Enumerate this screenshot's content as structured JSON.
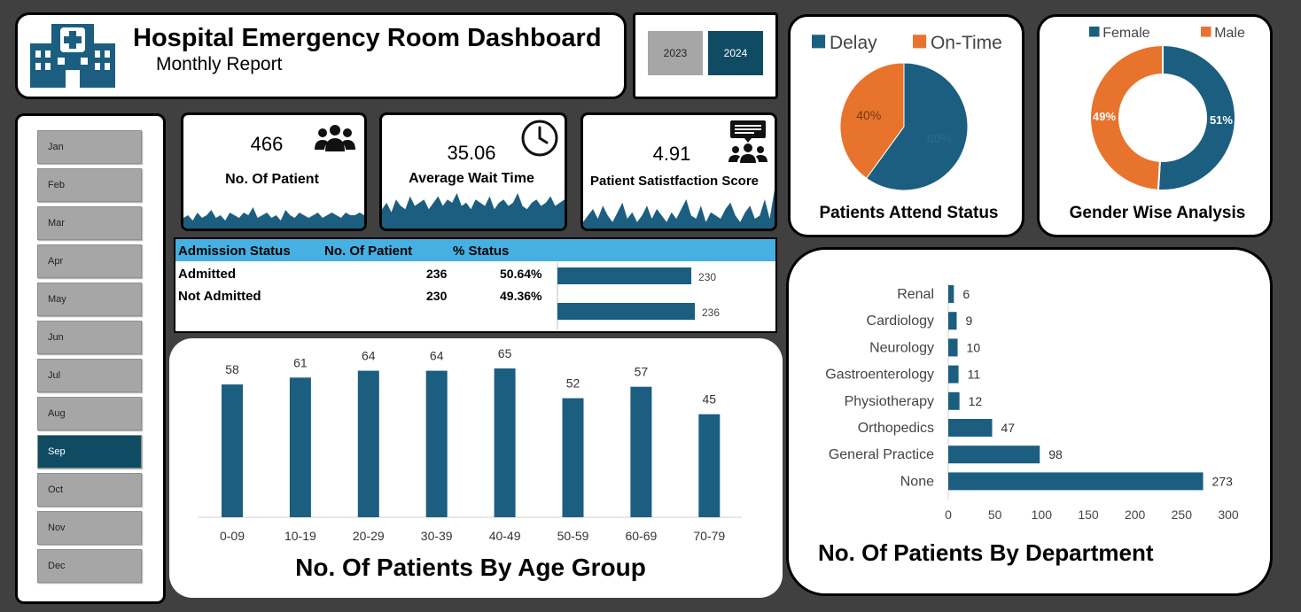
{
  "header": {
    "title": "Hospital Emergency Room Dashboard",
    "subtitle": "Monthly Report",
    "icon": "hospital-building-icon"
  },
  "years": [
    "2023",
    "2024"
  ],
  "selected_year": "2024",
  "months": [
    "Jan",
    "Feb",
    "Mar",
    "Apr",
    "May",
    "Jun",
    "Jul",
    "Aug",
    "Sep",
    "Oct",
    "Nov",
    "Dec"
  ],
  "selected_month": "Sep",
  "kpis": {
    "patients": {
      "value": "466",
      "label": "No. Of Patient",
      "icon": "people-group-icon"
    },
    "wait_time": {
      "value": "35.06",
      "label": "Average Wait Time",
      "icon": "clock-icon"
    },
    "satisfaction": {
      "value": "4.91",
      "label": "Patient Satistfaction Score",
      "icon": "feedback-people-icon"
    }
  },
  "admission": {
    "headers": [
      "Admission Status",
      "No. Of Patient",
      "% Status"
    ],
    "rows": [
      {
        "status": "Admitted",
        "count": "236",
        "pct": "50.64%"
      },
      {
        "status": "Not Admitted",
        "count": "230",
        "pct": "49.36%"
      }
    ]
  },
  "colors": {
    "primary": "#1b5e80",
    "dark_primary": "#0f4c63",
    "orange": "#e8732c",
    "header_blue": "#45b0e1",
    "bg": "#404040"
  },
  "chart_data": [
    {
      "id": "admission-bar",
      "type": "bar",
      "orientation": "horizontal",
      "categories": [
        "Not Admitted",
        "Admitted"
      ],
      "values": [
        230,
        236
      ],
      "data_labels": [
        "230",
        "236"
      ]
    },
    {
      "id": "attend-status",
      "type": "pie",
      "title": "Patients Attend Status",
      "labels": [
        "Delay",
        "On-Time"
      ],
      "values": [
        60,
        40
      ],
      "data_labels": [
        "60%",
        "40%"
      ],
      "colors": [
        "#1b5e80",
        "#e8732c"
      ],
      "legend": "top"
    },
    {
      "id": "gender",
      "type": "pie",
      "variant": "donut",
      "title": "Gender Wise Analysis",
      "labels": [
        "Female",
        "Male"
      ],
      "values": [
        51,
        49
      ],
      "data_labels": [
        "51%",
        "49%"
      ],
      "colors": [
        "#1b5e80",
        "#e8732c"
      ],
      "legend": "top"
    },
    {
      "id": "age-group",
      "type": "bar",
      "title": "No. Of Patients By Age Group",
      "categories": [
        "0-09",
        "10-19",
        "20-29",
        "30-39",
        "40-49",
        "50-59",
        "60-69",
        "70-79"
      ],
      "values": [
        58,
        61,
        64,
        64,
        65,
        52,
        57,
        45
      ],
      "ylim": [
        0,
        70
      ]
    },
    {
      "id": "department",
      "type": "bar",
      "orientation": "horizontal",
      "title": "No. Of Patients By Department",
      "categories": [
        "Renal",
        "Cardiology",
        "Neurology",
        "Gastroenterology",
        "Physiotherapy",
        "Orthopedics",
        "General Practice",
        "None"
      ],
      "values": [
        6,
        9,
        10,
        11,
        12,
        47,
        98,
        273
      ],
      "xlim": [
        0,
        300
      ],
      "xticks": [
        "0",
        "50",
        "100",
        "150",
        "200",
        "250",
        "300"
      ]
    },
    {
      "id": "sparklines",
      "type": "area",
      "series": [
        {
          "name": "patients",
          "values": [
            4,
            5,
            3,
            6,
            4,
            5,
            7,
            4,
            5,
            3,
            6,
            5,
            4,
            6,
            5,
            8,
            4,
            5,
            6,
            4,
            5,
            3,
            7,
            5,
            4,
            6,
            5,
            4,
            5,
            6,
            4,
            5,
            6,
            5,
            4,
            6,
            5,
            5,
            6,
            5
          ]
        },
        {
          "name": "wait_time",
          "values": [
            6,
            8,
            5,
            9,
            7,
            6,
            10,
            7,
            8,
            9,
            6,
            8,
            10,
            7,
            9,
            8,
            11,
            7,
            8,
            6,
            9,
            8,
            7,
            10,
            6,
            8,
            9,
            7,
            8,
            11,
            7,
            6,
            8,
            9,
            7,
            8,
            10,
            7,
            8,
            9
          ]
        },
        {
          "name": "satisfaction",
          "values": [
            2,
            4,
            6,
            3,
            7,
            4,
            2,
            5,
            8,
            3,
            5,
            2,
            4,
            7,
            3,
            6,
            4,
            2,
            5,
            3,
            6,
            9,
            4,
            3,
            7,
            2,
            5,
            4,
            3,
            6,
            8,
            4,
            2,
            5,
            7,
            3,
            4,
            9,
            3,
            12
          ]
        }
      ]
    }
  ]
}
